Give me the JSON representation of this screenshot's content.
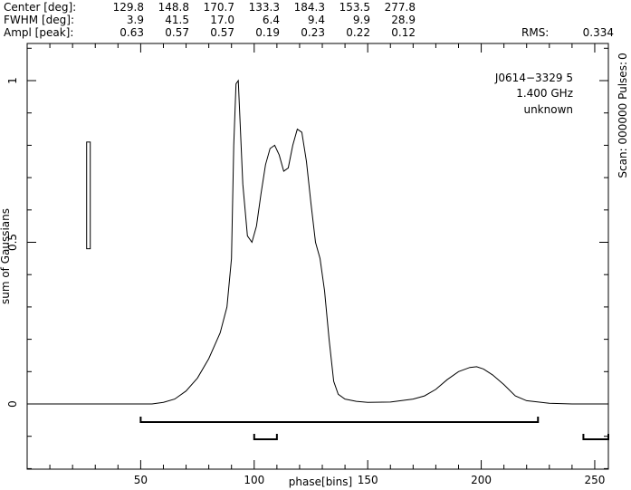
{
  "header": {
    "rows": [
      {
        "label": "Center [deg]:",
        "values": [
          "129.8",
          "148.8",
          "170.7",
          "133.3",
          "184.3",
          "153.5",
          "277.8"
        ]
      },
      {
        "label": "FWHM  [deg]:",
        "values": [
          "3.9",
          "41.5",
          "17.0",
          "6.4",
          "9.4",
          "9.9",
          "28.9"
        ]
      },
      {
        "label": "Ampl  [peak]:",
        "values": [
          "0.63",
          "0.57",
          "0.57",
          "0.19",
          "0.23",
          "0.22",
          "0.12"
        ]
      }
    ],
    "rms_label": "RMS:",
    "rms_value": "0.334"
  },
  "annotations": {
    "source": "J0614−3329 5",
    "frequency": "1.400 GHz",
    "status": "unknown",
    "right_text": "Scan: 000000  Pulses:",
    "right_value": "0"
  },
  "chart_data": {
    "type": "line",
    "title": "",
    "xlabel": "phase[bins]",
    "ylabel": "sum of Gaussians",
    "xlim": [
      0,
      256
    ],
    "ylim": [
      0,
      1
    ],
    "x_ticks": [
      50,
      100,
      150,
      200,
      250
    ],
    "y_ticks": [
      0,
      0.5,
      1
    ],
    "y_tick_labels": [
      "0",
      "0.5",
      "1"
    ],
    "grid": false,
    "series": [
      {
        "name": "",
        "x": [
          0,
          55,
          60,
          65,
          70,
          75,
          80,
          85,
          88,
          90,
          91,
          92,
          93,
          95,
          97,
          99,
          101,
          103,
          105,
          107,
          109,
          111,
          113,
          115,
          117,
          119,
          121,
          123,
          125,
          127,
          129,
          131,
          133,
          135,
          137,
          140,
          145,
          150,
          160,
          170,
          175,
          180,
          185,
          190,
          195,
          198,
          201,
          205,
          210,
          215,
          220,
          230,
          240,
          256
        ],
        "y": [
          0,
          0,
          0.005,
          0.015,
          0.04,
          0.08,
          0.14,
          0.22,
          0.3,
          0.45,
          0.8,
          0.99,
          1.0,
          0.68,
          0.52,
          0.5,
          0.55,
          0.65,
          0.74,
          0.79,
          0.8,
          0.77,
          0.72,
          0.73,
          0.8,
          0.85,
          0.84,
          0.75,
          0.62,
          0.5,
          0.45,
          0.35,
          0.2,
          0.07,
          0.03,
          0.015,
          0.008,
          0.005,
          0.006,
          0.015,
          0.025,
          0.045,
          0.075,
          0.1,
          0.113,
          0.115,
          0.108,
          0.09,
          0.06,
          0.025,
          0.01,
          0.002,
          0,
          0
        ]
      }
    ],
    "scale_bar": {
      "x": 27,
      "y_bottom": 0.48,
      "y_top": 0.81
    },
    "brackets": [
      {
        "start": 50,
        "end": 225,
        "level": 1
      },
      {
        "start": 100,
        "end": 110,
        "level": 2
      },
      {
        "start": 245,
        "end": 256,
        "level": 2
      }
    ]
  }
}
